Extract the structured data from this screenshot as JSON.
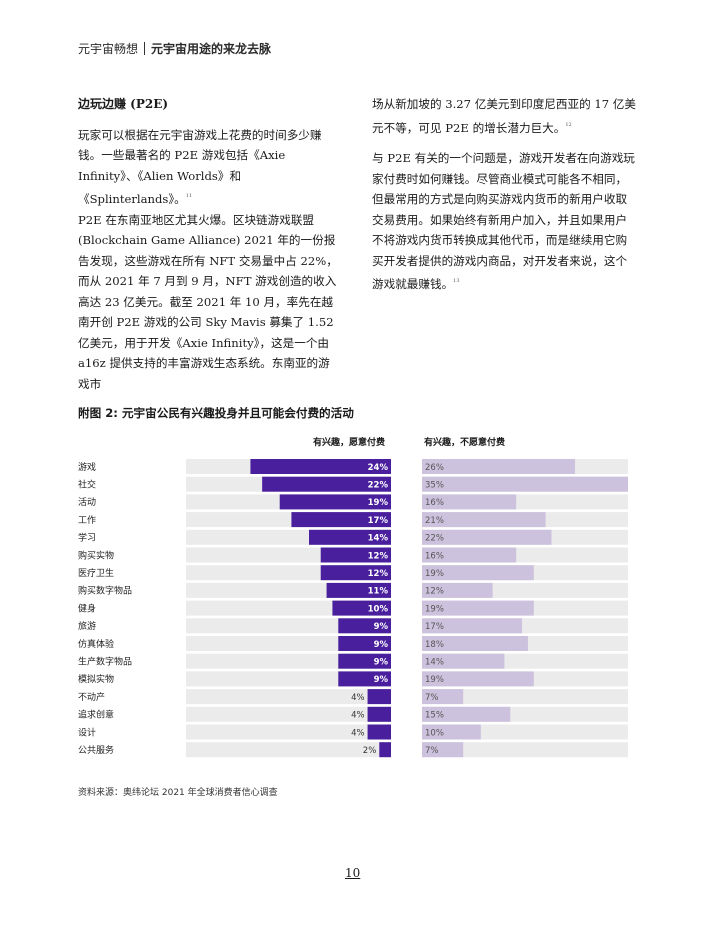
{
  "header": {
    "report": "元宇宙畅想",
    "chapter": "元宇宙用途的来龙去脉"
  },
  "left_column": {
    "section_title": "边玩边赚 (P2E)",
    "para1": "玩家可以根据在元宇宙游戏上花费的时间多少赚钱。一些最著名的 P2E 游戏包括《Axie Infinity》、《Alien Worlds》和《Splinterlands》。",
    "fn11": "11",
    "para2": "P2E 在东南亚地区尤其火爆。区块链游戏联盟 (Blockchain Game Alliance) 2021 年的一份报告发现，这些游戏在所有 NFT 交易量中占 22%，而从 2021 年 7 月到 9 月，NFT 游戏创造的收入高达 23 亿美元。截至 2021 年 10 月，率先在越南开创 P2E 游戏的公司 Sky Mavis 募集了 1.52 亿美元，用于开发《Axie Infinity》，这是一个由 a16z 提供支持的丰富游戏生态系统。东南亚的游戏市"
  },
  "right_column": {
    "para1": "场从新加坡的 3.27 亿美元到印度尼西亚的 17 亿美元不等，可见 P2E 的增长潜力巨大。",
    "fn12": "12",
    "para2": "与 P2E 有关的一个问题是，游戏开发者在向游戏玩家付费时如何赚钱。尽管商业模式可能各不相同，但最常用的方式是向购买游戏内货币的新用户收取交易费用。如果始终有新用户加入，并且如果用户不将游戏内货币转换成其他代币，而是继续用它购买开发者提供的游戏内商品，对开发者来说，这个游戏就最赚钱。",
    "fn13": "13"
  },
  "figure": {
    "title": "附图 2: 元宇宙公民有兴趣投身并且可能会付费的活动",
    "source": "资料来源：奥纬论坛 2021 年全球消费者信心调查"
  },
  "chart_data": {
    "type": "bar",
    "title": "附图 2: 元宇宙公民有兴趣投身并且可能会付费的活动",
    "categories": [
      "游戏",
      "社交",
      "活动",
      "工作",
      "学习",
      "购买实物",
      "医疗卫生",
      "购买数字物品",
      "健身",
      "旅游",
      "仿真体验",
      "生产数字物品",
      "模拟实物",
      "不动产",
      "追求创意",
      "设计",
      "公共服务"
    ],
    "series": [
      {
        "name": "有兴趣，愿意付费",
        "color": "#4a1f9e",
        "values": [
          24,
          22,
          19,
          17,
          14,
          12,
          12,
          11,
          10,
          9,
          9,
          9,
          9,
          4,
          4,
          4,
          2
        ]
      },
      {
        "name": "有兴趣，不愿意付费",
        "color": "#cdc2dd",
        "values": [
          26,
          35,
          16,
          21,
          22,
          16,
          19,
          12,
          19,
          17,
          18,
          14,
          19,
          7,
          15,
          10,
          7
        ]
      }
    ],
    "value_suffix": "%",
    "track_color": "#ebebeb",
    "xlim": [
      0,
      35
    ],
    "grid": false,
    "legend": "top"
  },
  "page_number": "10"
}
